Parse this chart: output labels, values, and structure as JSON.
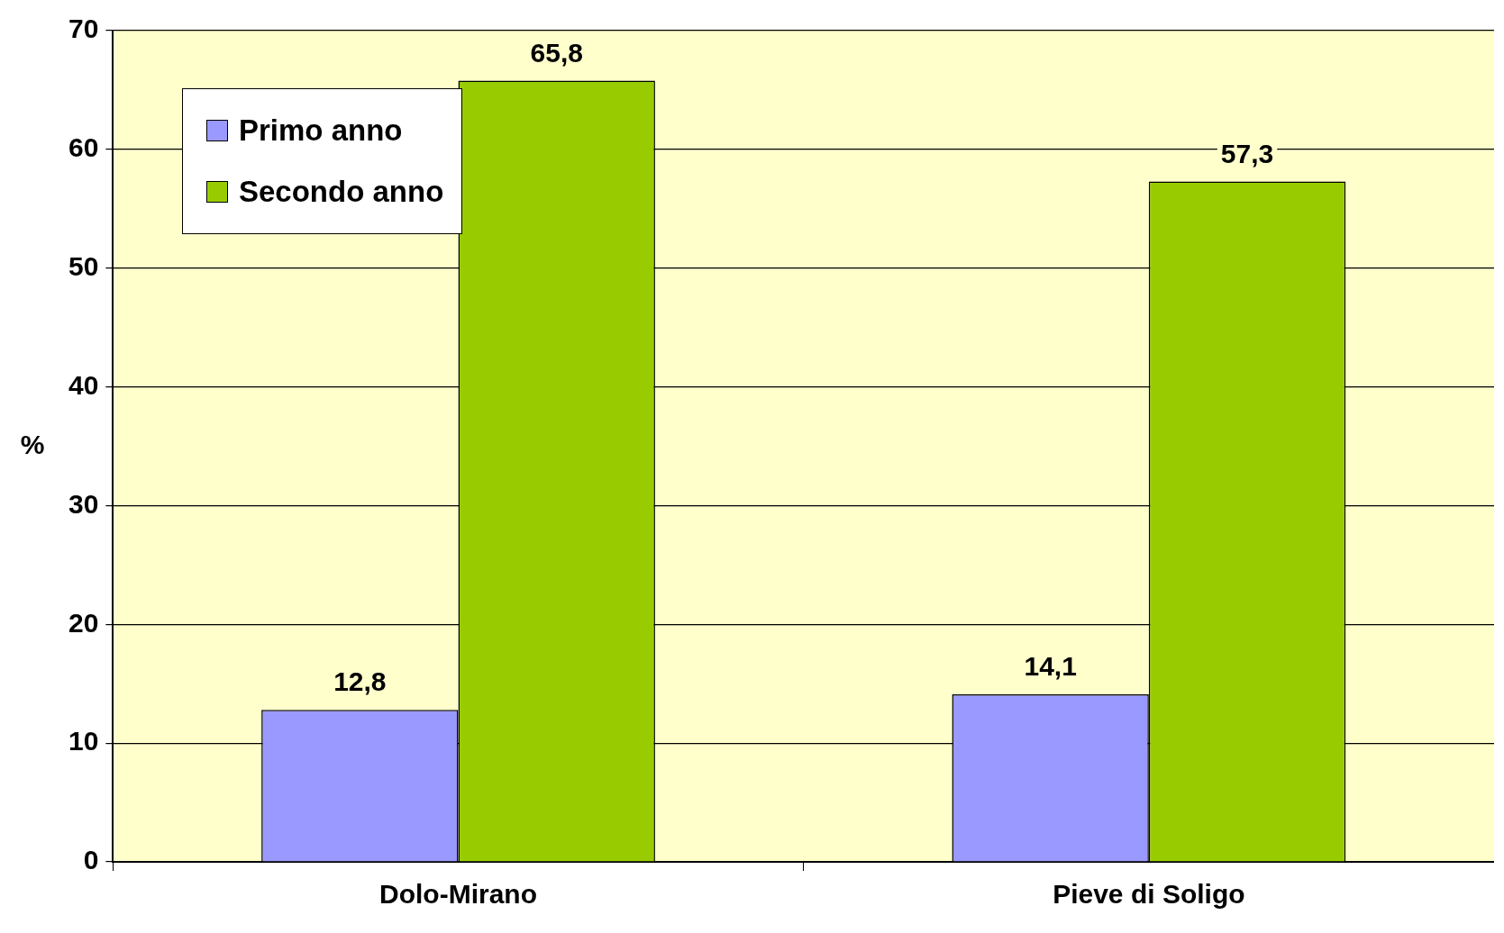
{
  "chart_data": {
    "type": "bar",
    "ylabel": "%",
    "categories": [
      "Dolo-Mirano",
      "Pieve di Soligo"
    ],
    "series": [
      {
        "name": "Primo anno",
        "color": "#9999ff",
        "values": [
          12.8,
          14.1
        ],
        "value_labels": [
          "12,8",
          "14,1"
        ]
      },
      {
        "name": "Secondo anno",
        "color": "#99cc00",
        "values": [
          65.8,
          57.3
        ],
        "value_labels": [
          "65,8",
          "57,3"
        ]
      }
    ],
    "ylim": [
      0,
      70
    ],
    "yticks": [
      0,
      10,
      20,
      30,
      40,
      50,
      60,
      70
    ],
    "grid": "y",
    "legend": "top left"
  }
}
